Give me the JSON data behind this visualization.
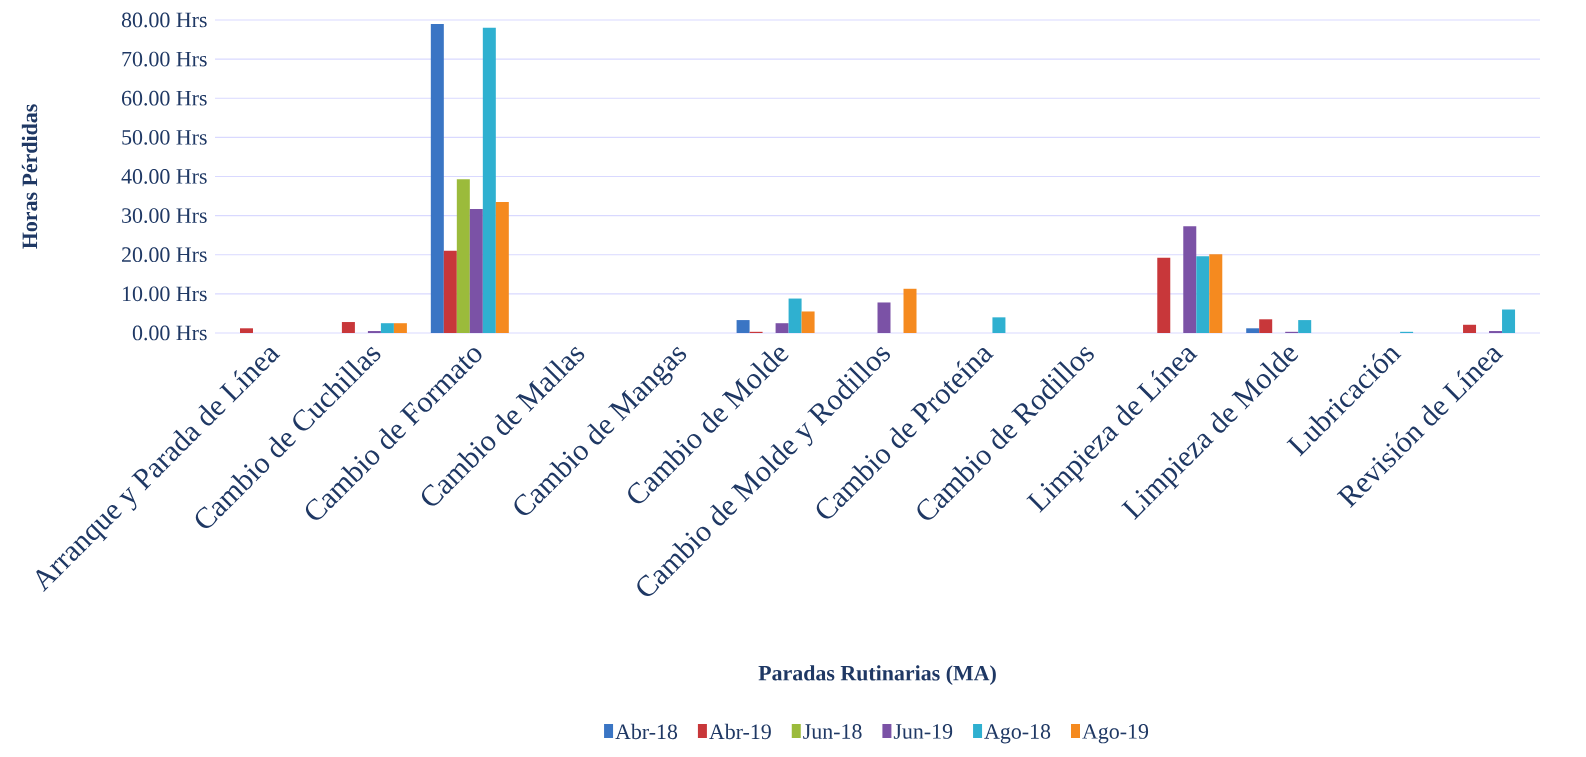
{
  "chart_data": {
    "type": "bar",
    "xlabel": "Paradas  Rutinarias  (MA)",
    "ylabel": "Horas  Pérdidas",
    "categories": [
      "Arranque y Parada de Línea",
      "Cambio de Cuchillas",
      "Cambio de Formato",
      "Cambio de Mallas",
      "Cambio de Mangas",
      "Cambio de Molde",
      "Cambio de Molde y Rodillos",
      "Cambio de Proteína",
      "Cambio de Rodillos",
      "Limpieza de Línea",
      "Limpieza de Molde",
      "Lubricación",
      "Revisión de Línea"
    ],
    "series": [
      {
        "name": "Abr-18",
        "color": "#3a75c4",
        "values": [
          0,
          0,
          79,
          0,
          0,
          3.3,
          0,
          0,
          0,
          0,
          1.2,
          0,
          0
        ]
      },
      {
        "name": "Abr-19",
        "color": "#c8373a",
        "values": [
          1.2,
          2.8,
          21,
          0,
          0,
          0.3,
          0,
          0,
          0,
          19.2,
          3.5,
          0,
          2.1
        ]
      },
      {
        "name": "Jun-18",
        "color": "#9bbb3b",
        "values": [
          0,
          0,
          39.3,
          0,
          0,
          0,
          0,
          0,
          0,
          0,
          0,
          0,
          0
        ]
      },
      {
        "name": "Jun-19",
        "color": "#7b52a6",
        "values": [
          0,
          0.5,
          31.7,
          0,
          0,
          2.5,
          7.8,
          0,
          0,
          27.3,
          0.3,
          0,
          0.5
        ]
      },
      {
        "name": "Ago-18",
        "color": "#2fb0d0",
        "values": [
          0,
          2.5,
          78,
          0,
          0,
          8.8,
          0,
          4,
          0,
          19.6,
          3.3,
          0.3,
          6
        ]
      },
      {
        "name": "Ago-19",
        "color": "#f58a1f",
        "values": [
          0,
          2.5,
          33.5,
          0,
          0,
          5.5,
          11.3,
          0,
          0,
          20.1,
          0,
          0,
          0
        ]
      }
    ],
    "ylim": [
      0,
      80
    ],
    "yticks": [
      {
        "value": 0,
        "label": "0.00 Hrs"
      },
      {
        "value": 10,
        "label": "10.00 Hrs"
      },
      {
        "value": 20,
        "label": "20.00 Hrs"
      },
      {
        "value": 30,
        "label": "30.00 Hrs"
      },
      {
        "value": 40,
        "label": "40.00 Hrs"
      },
      {
        "value": 50,
        "label": "50.00 Hrs"
      },
      {
        "value": 60,
        "label": "60.00 Hrs"
      },
      {
        "value": 70,
        "label": "70.00 Hrs"
      },
      {
        "value": 80,
        "label": "80.00 Hrs"
      }
    ],
    "grid": "y",
    "legend": "bottom"
  }
}
